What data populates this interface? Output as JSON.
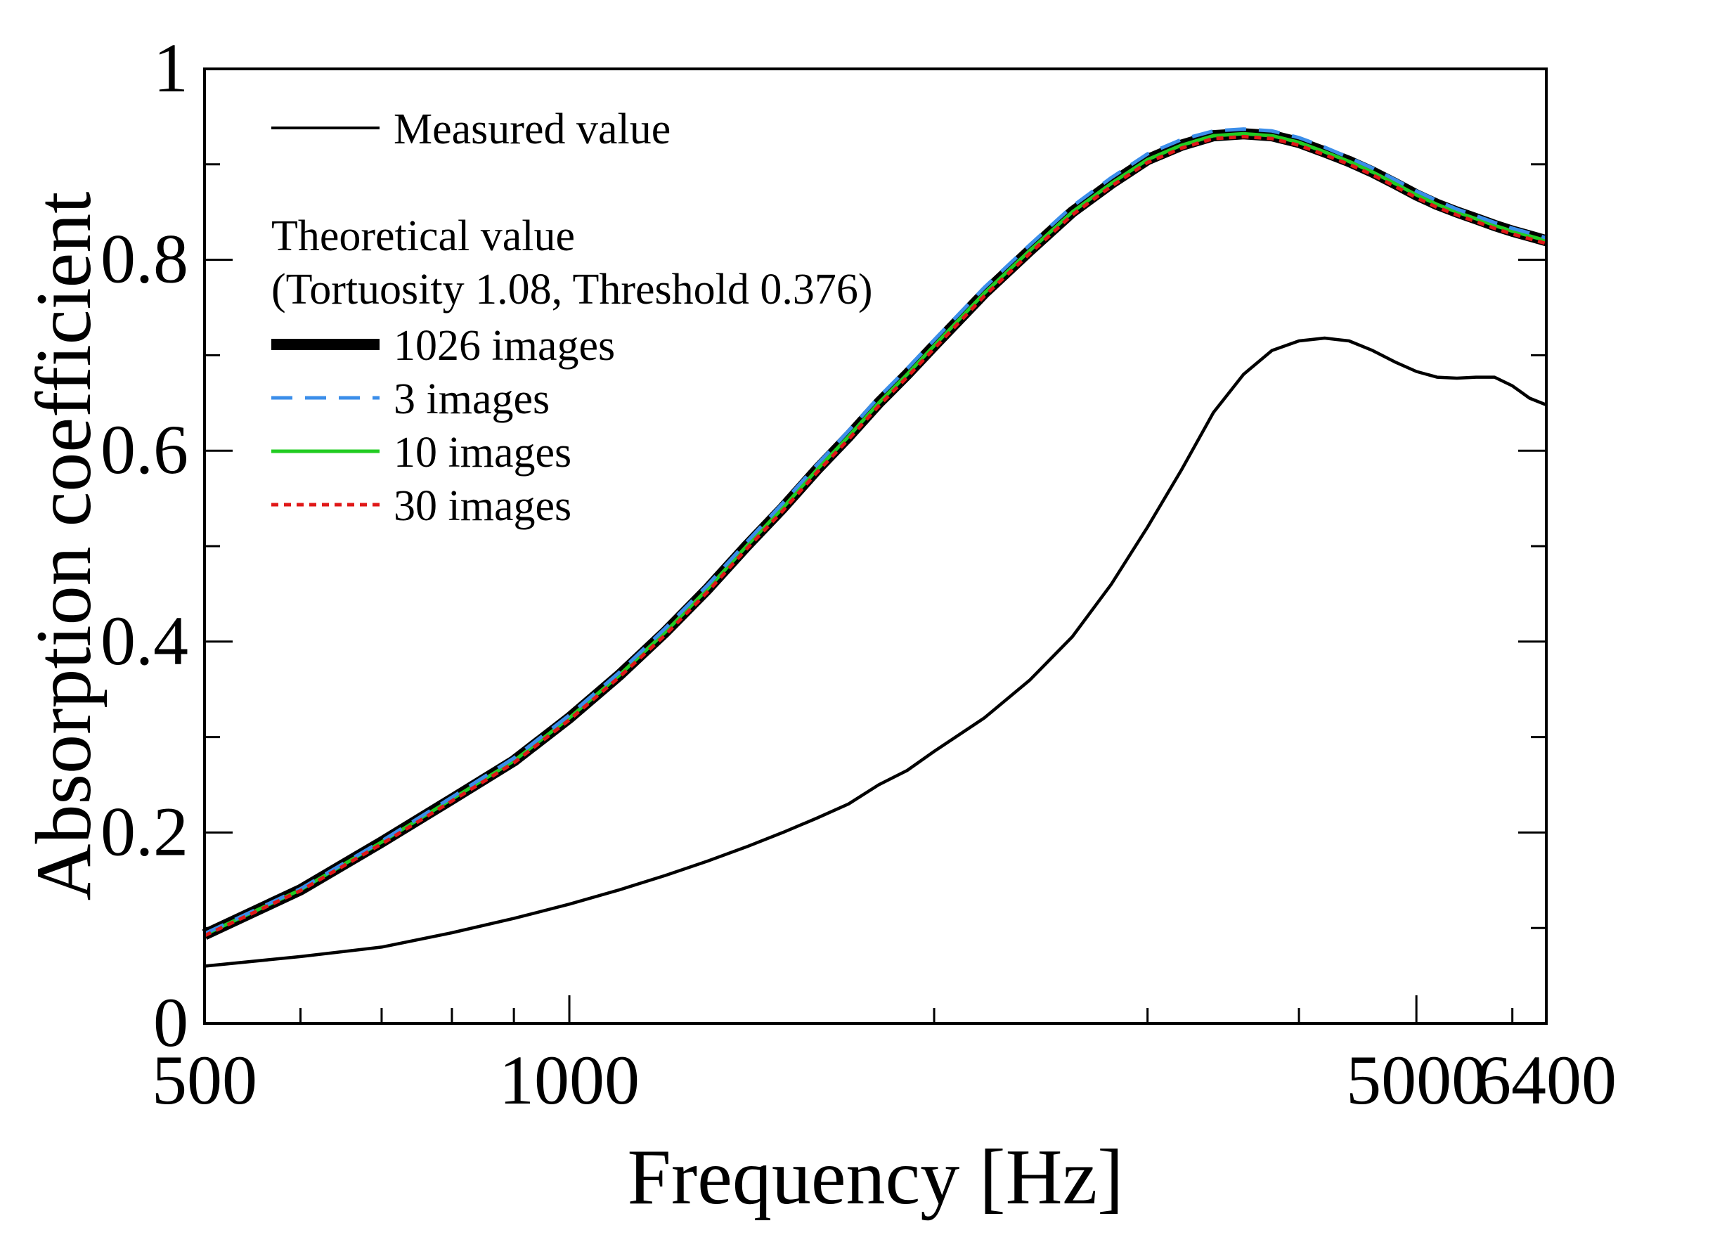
{
  "chart_data": {
    "type": "line",
    "xscale": "log",
    "xlabel": "Frequency [Hz]",
    "ylabel": "Absorption coefficient",
    "xlim": [
      500,
      6400
    ],
    "ylim": [
      0,
      1
    ],
    "x_ticks": [
      500,
      1000,
      5000,
      6400
    ],
    "x_tick_labels": [
      "500",
      "1000",
      "5000",
      "6400"
    ],
    "y_ticks": [
      0,
      0.2,
      0.4,
      0.6,
      0.8,
      1
    ],
    "y_tick_labels": [
      "0",
      "0.2",
      "0.4",
      "0.6",
      "0.8",
      "1"
    ],
    "legend": {
      "measured_label": "Measured value",
      "theory_heading": "Theoretical value",
      "theory_params": "(Tortuosity 1.08, Threshold 0.376)"
    },
    "series": [
      {
        "name": "Measured value",
        "color": "#000000",
        "style": "solid-thin",
        "x": [
          500,
          600,
          700,
          800,
          900,
          1000,
          1100,
          1200,
          1300,
          1400,
          1500,
          1600,
          1700,
          1800,
          1900,
          2000,
          2200,
          2400,
          2600,
          2800,
          3000,
          3200,
          3400,
          3600,
          3800,
          4000,
          4200,
          4400,
          4600,
          4800,
          5000,
          5200,
          5400,
          5600,
          5800,
          6000,
          6200,
          6400
        ],
        "y": [
          0.06,
          0.07,
          0.08,
          0.095,
          0.11,
          0.125,
          0.14,
          0.155,
          0.17,
          0.185,
          0.2,
          0.215,
          0.23,
          0.25,
          0.265,
          0.285,
          0.32,
          0.36,
          0.405,
          0.46,
          0.52,
          0.58,
          0.64,
          0.68,
          0.705,
          0.715,
          0.718,
          0.715,
          0.705,
          0.693,
          0.683,
          0.677,
          0.676,
          0.677,
          0.677,
          0.668,
          0.655,
          0.648
        ]
      },
      {
        "name": "1026 images",
        "color": "#000000",
        "style": "solid-thick",
        "x": [
          500,
          600,
          700,
          800,
          900,
          1000,
          1100,
          1200,
          1300,
          1400,
          1500,
          1600,
          1700,
          1800,
          1900,
          2000,
          2200,
          2400,
          2600,
          2800,
          3000,
          3200,
          3400,
          3600,
          3800,
          4000,
          4200,
          4400,
          4600,
          4800,
          5000,
          5200,
          5400,
          5600,
          5800,
          6000,
          6200,
          6400
        ],
        "y": [
          0.093,
          0.14,
          0.19,
          0.235,
          0.275,
          0.32,
          0.365,
          0.41,
          0.455,
          0.5,
          0.54,
          0.58,
          0.615,
          0.65,
          0.68,
          0.71,
          0.765,
          0.81,
          0.85,
          0.88,
          0.905,
          0.92,
          0.93,
          0.932,
          0.93,
          0.923,
          0.913,
          0.903,
          0.892,
          0.88,
          0.868,
          0.858,
          0.85,
          0.843,
          0.836,
          0.83,
          0.825,
          0.82
        ]
      },
      {
        "name": "3 images",
        "color": "#3B8EEA",
        "style": "dashed",
        "x": [
          500,
          600,
          700,
          800,
          900,
          1000,
          1100,
          1200,
          1300,
          1400,
          1500,
          1600,
          1700,
          1800,
          1900,
          2000,
          2200,
          2400,
          2600,
          2800,
          3000,
          3200,
          3400,
          3600,
          3800,
          4000,
          4200,
          4400,
          4600,
          4800,
          5000,
          5200,
          5400,
          5600,
          5800,
          6000,
          6200,
          6400
        ],
        "y": [
          0.094,
          0.141,
          0.191,
          0.237,
          0.278,
          0.323,
          0.368,
          0.414,
          0.459,
          0.504,
          0.545,
          0.585,
          0.621,
          0.656,
          0.686,
          0.716,
          0.771,
          0.816,
          0.856,
          0.886,
          0.911,
          0.926,
          0.935,
          0.937,
          0.935,
          0.928,
          0.918,
          0.907,
          0.896,
          0.884,
          0.872,
          0.862,
          0.853,
          0.846,
          0.839,
          0.833,
          0.828,
          0.823
        ]
      },
      {
        "name": "10 images",
        "color": "#22CC22",
        "style": "solid",
        "x": [
          500,
          600,
          700,
          800,
          900,
          1000,
          1100,
          1200,
          1300,
          1400,
          1500,
          1600,
          1700,
          1800,
          1900,
          2000,
          2200,
          2400,
          2600,
          2800,
          3000,
          3200,
          3400,
          3600,
          3800,
          4000,
          4200,
          4400,
          4600,
          4800,
          5000,
          5200,
          5400,
          5600,
          5800,
          6000,
          6200,
          6400
        ],
        "y": [
          0.093,
          0.14,
          0.19,
          0.235,
          0.275,
          0.32,
          0.365,
          0.41,
          0.455,
          0.5,
          0.54,
          0.58,
          0.615,
          0.65,
          0.68,
          0.71,
          0.765,
          0.81,
          0.85,
          0.88,
          0.905,
          0.92,
          0.93,
          0.932,
          0.93,
          0.923,
          0.913,
          0.903,
          0.892,
          0.88,
          0.868,
          0.858,
          0.85,
          0.843,
          0.836,
          0.83,
          0.825,
          0.82
        ]
      },
      {
        "name": "30 images",
        "color": "#E01818",
        "style": "dotted",
        "x": [
          500,
          600,
          700,
          800,
          900,
          1000,
          1100,
          1200,
          1300,
          1400,
          1500,
          1600,
          1700,
          1800,
          1900,
          2000,
          2200,
          2400,
          2600,
          2800,
          3000,
          3200,
          3400,
          3600,
          3800,
          4000,
          4200,
          4400,
          4600,
          4800,
          5000,
          5200,
          5400,
          5600,
          5800,
          6000,
          6200,
          6400
        ],
        "y": [
          0.092,
          0.139,
          0.188,
          0.233,
          0.273,
          0.318,
          0.363,
          0.407,
          0.452,
          0.497,
          0.537,
          0.577,
          0.612,
          0.647,
          0.677,
          0.707,
          0.762,
          0.807,
          0.847,
          0.877,
          0.902,
          0.917,
          0.927,
          0.929,
          0.927,
          0.92,
          0.91,
          0.9,
          0.889,
          0.877,
          0.865,
          0.855,
          0.847,
          0.84,
          0.833,
          0.827,
          0.822,
          0.817
        ]
      }
    ]
  }
}
